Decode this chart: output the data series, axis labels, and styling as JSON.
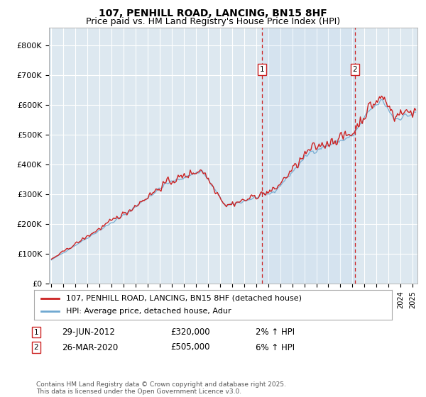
{
  "title": "107, PENHILL ROAD, LANCING, BN15 8HF",
  "subtitle": "Price paid vs. HM Land Registry's House Price Index (HPI)",
  "ylabel_ticks": [
    "£0",
    "£100K",
    "£200K",
    "£300K",
    "£400K",
    "£500K",
    "£600K",
    "£700K",
    "£800K"
  ],
  "ytick_values": [
    0,
    100000,
    200000,
    300000,
    400000,
    500000,
    600000,
    700000,
    800000
  ],
  "ylim": [
    0,
    860000
  ],
  "xlim_start": 1994.8,
  "xlim_end": 2025.4,
  "background_color": "#ffffff",
  "plot_bg_color": "#dde8f0",
  "grid_color": "#ffffff",
  "hpi_color": "#6fa8d0",
  "price_color": "#cc2222",
  "vline_color": "#cc2222",
  "marker1_date": 2012.5,
  "marker2_date": 2020.2,
  "legend_line1": "107, PENHILL ROAD, LANCING, BN15 8HF (detached house)",
  "legend_line2": "HPI: Average price, detached house, Adur",
  "annotation1": "29-JUN-2012",
  "annotation1_price": "£320,000",
  "annotation1_hpi": "2% ↑ HPI",
  "annotation2": "26-MAR-2020",
  "annotation2_price": "£505,000",
  "annotation2_hpi": "6% ↑ HPI",
  "footer": "Contains HM Land Registry data © Crown copyright and database right 2025.\nThis data is licensed under the Open Government Licence v3.0.",
  "title_fontsize": 10,
  "subtitle_fontsize": 9
}
